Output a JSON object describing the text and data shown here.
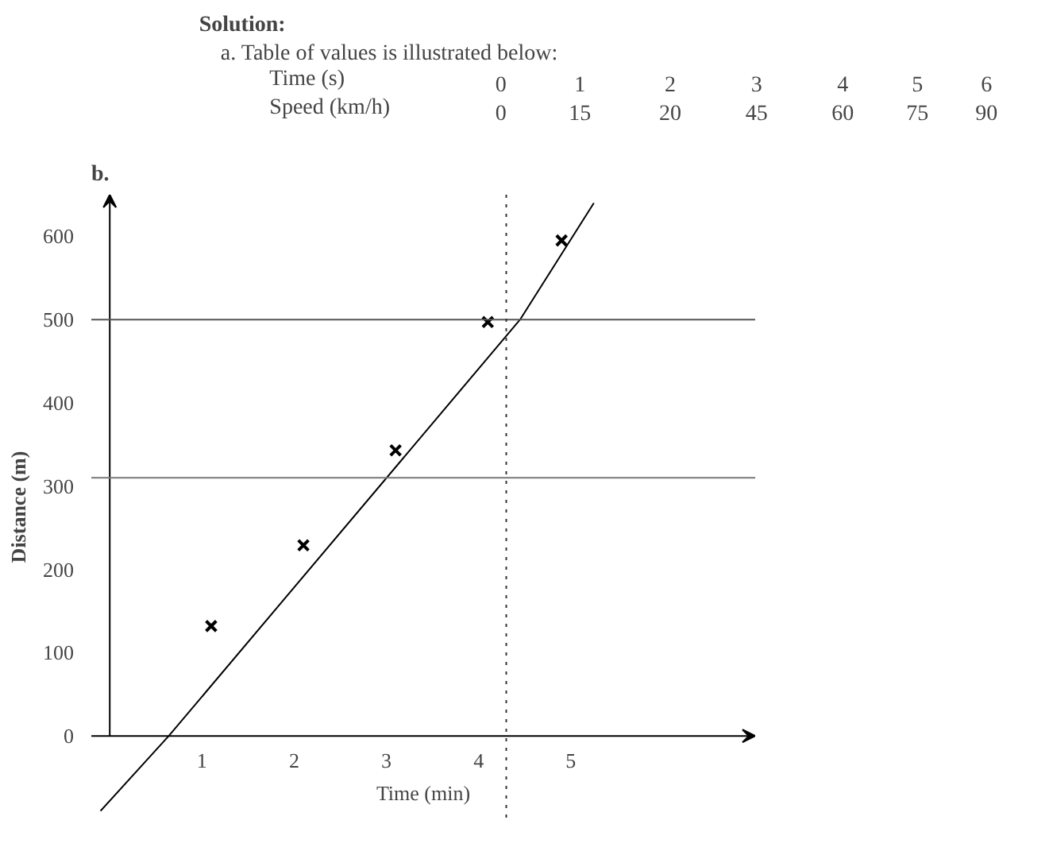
{
  "chart_data": [
    {
      "type": "heatmap",
      "title": "Solution:",
      "subtitle": "a.  Table of values is illustrated below:",
      "xlabel": "Time  (s)",
      "categories": [
        "0",
        "1",
        "2",
        "3",
        "4",
        "5",
        "6"
      ],
      "y_categories": [
        "Speed (km/h)"
      ],
      "cells": [
        [
          0,
          15,
          20,
          45,
          60,
          75,
          90
        ]
      ],
      "color": "#ffffff",
      "data_labels": true
    },
    {
      "type": "scatter",
      "title": "b.",
      "xlabel": "Time (min)",
      "ylabel": "Distance (m)",
      "grid": false,
      "xlim": [
        -0.2,
        7
      ],
      "ylim": [
        -100,
        650
      ],
      "xticks": [
        1,
        2,
        3,
        4,
        5
      ],
      "yticks": [
        0,
        100,
        200,
        300,
        400,
        500,
        600
      ],
      "series": [
        {
          "type": "scatter",
          "marker": "cross",
          "color": "#000000",
          "x": [
            1.1,
            2.1,
            3.1,
            4.1,
            4.9
          ],
          "values": [
            132,
            229,
            343,
            497,
            595
          ]
        },
        {
          "type": "line",
          "color": "#000000",
          "x": [
            -0.1,
            0.64,
            4.45,
            5.25
          ],
          "values": [
            -90,
            0,
            500,
            640
          ]
        }
      ],
      "ref_lines": [
        {
          "axis": "y",
          "value": 500,
          "color": "#555555",
          "line_style": "solid"
        },
        {
          "axis": "y",
          "value": 310,
          "color": "#777777",
          "line_style": "solid"
        },
        {
          "axis": "x",
          "value": 4.3,
          "color": "#333333",
          "line_style": "dotted"
        }
      ]
    }
  ]
}
